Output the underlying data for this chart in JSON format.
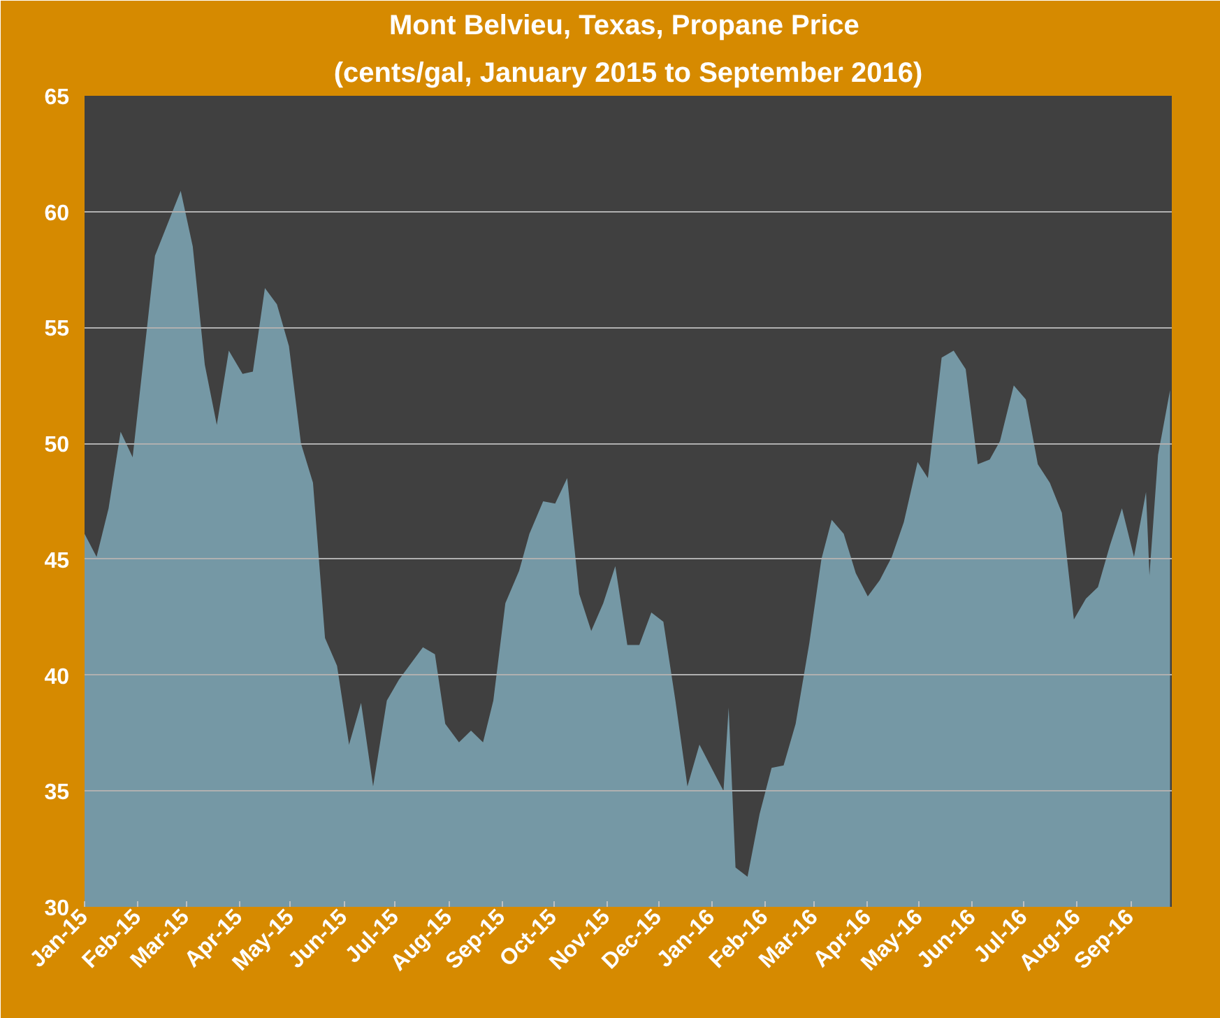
{
  "chart_data": {
    "type": "area",
    "title": "Mont Belvieu,  Texas, Propane Price",
    "subtitle": "(cents/gal, January 2015 to September 2016)",
    "x": [
      "2015-01-01",
      "2015-01-08",
      "2015-01-15",
      "2015-01-22",
      "2015-01-29",
      "2015-02-11",
      "2015-02-26",
      "2015-03-05",
      "2015-03-12",
      "2015-03-19",
      "2015-03-26",
      "2015-04-03",
      "2015-04-09",
      "2015-04-16",
      "2015-04-23",
      "2015-04-30",
      "2015-05-07",
      "2015-05-14",
      "2015-05-21",
      "2015-05-28",
      "2015-06-04",
      "2015-06-11",
      "2015-06-18",
      "2015-06-26",
      "2015-07-03",
      "2015-07-10",
      "2015-07-17",
      "2015-07-24",
      "2015-07-30",
      "2015-08-07",
      "2015-08-14",
      "2015-08-21",
      "2015-08-27",
      "2015-09-03",
      "2015-09-11",
      "2015-09-17",
      "2015-09-25",
      "2015-10-02",
      "2015-10-09",
      "2015-10-16",
      "2015-10-23",
      "2015-10-30",
      "2015-11-06",
      "2015-11-13",
      "2015-11-20",
      "2015-11-27",
      "2015-12-04",
      "2015-12-11",
      "2015-12-18",
      "2015-12-25",
      "2016-01-01",
      "2016-01-08",
      "2016-01-11",
      "2016-01-15",
      "2016-01-22",
      "2016-01-29",
      "2016-02-05",
      "2016-02-12",
      "2016-02-19",
      "2016-02-27",
      "2016-03-05",
      "2016-03-11",
      "2016-03-18",
      "2016-03-25",
      "2016-04-01",
      "2016-04-08",
      "2016-04-15",
      "2016-04-22",
      "2016-04-30",
      "2016-05-06",
      "2016-05-14",
      "2016-05-21",
      "2016-05-28",
      "2016-06-04",
      "2016-06-11",
      "2016-06-17",
      "2016-06-25",
      "2016-07-02",
      "2016-07-09",
      "2016-07-16",
      "2016-07-23",
      "2016-07-30",
      "2016-08-06",
      "2016-08-13",
      "2016-08-20",
      "2016-08-27",
      "2016-09-03",
      "2016-09-10",
      "2016-09-12",
      "2016-09-17",
      "2016-09-24"
    ],
    "series": [
      {
        "color": "#7598a5",
        "values": [
          46.1,
          45.1,
          47.2,
          50.5,
          49.4,
          58.1,
          60.9,
          58.5,
          53.4,
          50.8,
          54.0,
          53.0,
          53.1,
          56.7,
          56.0,
          54.2,
          50.0,
          48.3,
          41.6,
          40.4,
          37.0,
          38.8,
          35.2,
          38.9,
          39.8,
          40.5,
          41.2,
          40.9,
          37.9,
          37.1,
          37.6,
          37.1,
          38.9,
          43.1,
          44.5,
          46.1,
          47.5,
          47.4,
          48.5,
          43.5,
          41.9,
          43.1,
          44.7,
          41.3,
          41.3,
          42.7,
          42.3,
          38.9,
          35.2,
          37.0,
          36.0,
          35.0,
          38.6,
          31.7,
          31.3,
          34.0,
          36.0,
          36.1,
          37.9,
          41.4,
          45.0,
          46.7,
          46.1,
          44.4,
          43.4,
          44.1,
          45.1,
          46.6,
          49.2,
          48.5,
          53.7,
          54.0,
          53.2,
          49.1,
          49.3,
          50.1,
          52.5,
          51.9,
          49.1,
          48.3,
          47.0,
          42.4,
          43.3,
          43.8,
          45.6,
          47.2,
          45.1,
          47.9,
          44.3,
          49.5,
          52.3
        ]
      }
    ],
    "xlim": [
      "2015-01-01",
      "2016-09-25"
    ],
    "xticks": [
      {
        "value": "2015-01-01",
        "label": "Jan-15"
      },
      {
        "value": "2015-02-01",
        "label": "Feb-15"
      },
      {
        "value": "2015-03-01",
        "label": "Mar-15"
      },
      {
        "value": "2015-04-01",
        "label": "Apr-15"
      },
      {
        "value": "2015-05-01",
        "label": "May-15"
      },
      {
        "value": "2015-06-01",
        "label": "Jun-15"
      },
      {
        "value": "2015-07-01",
        "label": "Jul-15"
      },
      {
        "value": "2015-08-01",
        "label": "Aug-15"
      },
      {
        "value": "2015-09-01",
        "label": "Sep-15"
      },
      {
        "value": "2015-10-01",
        "label": "Oct-15"
      },
      {
        "value": "2015-11-01",
        "label": "Nov-15"
      },
      {
        "value": "2015-12-01",
        "label": "Dec-15"
      },
      {
        "value": "2016-01-01",
        "label": "Jan-16"
      },
      {
        "value": "2016-02-01",
        "label": "Feb-16"
      },
      {
        "value": "2016-03-01",
        "label": "Mar-16"
      },
      {
        "value": "2016-04-01",
        "label": "Apr-16"
      },
      {
        "value": "2016-05-01",
        "label": "May-16"
      },
      {
        "value": "2016-06-01",
        "label": "Jun-16"
      },
      {
        "value": "2016-07-01",
        "label": "Jul-16"
      },
      {
        "value": "2016-08-01",
        "label": "Aug-16"
      },
      {
        "value": "2016-09-01",
        "label": "Sep-16"
      }
    ],
    "ylim": [
      30,
      65
    ],
    "yticks": [
      30,
      35,
      40,
      45,
      50,
      55,
      60,
      65
    ],
    "grid": "y"
  }
}
